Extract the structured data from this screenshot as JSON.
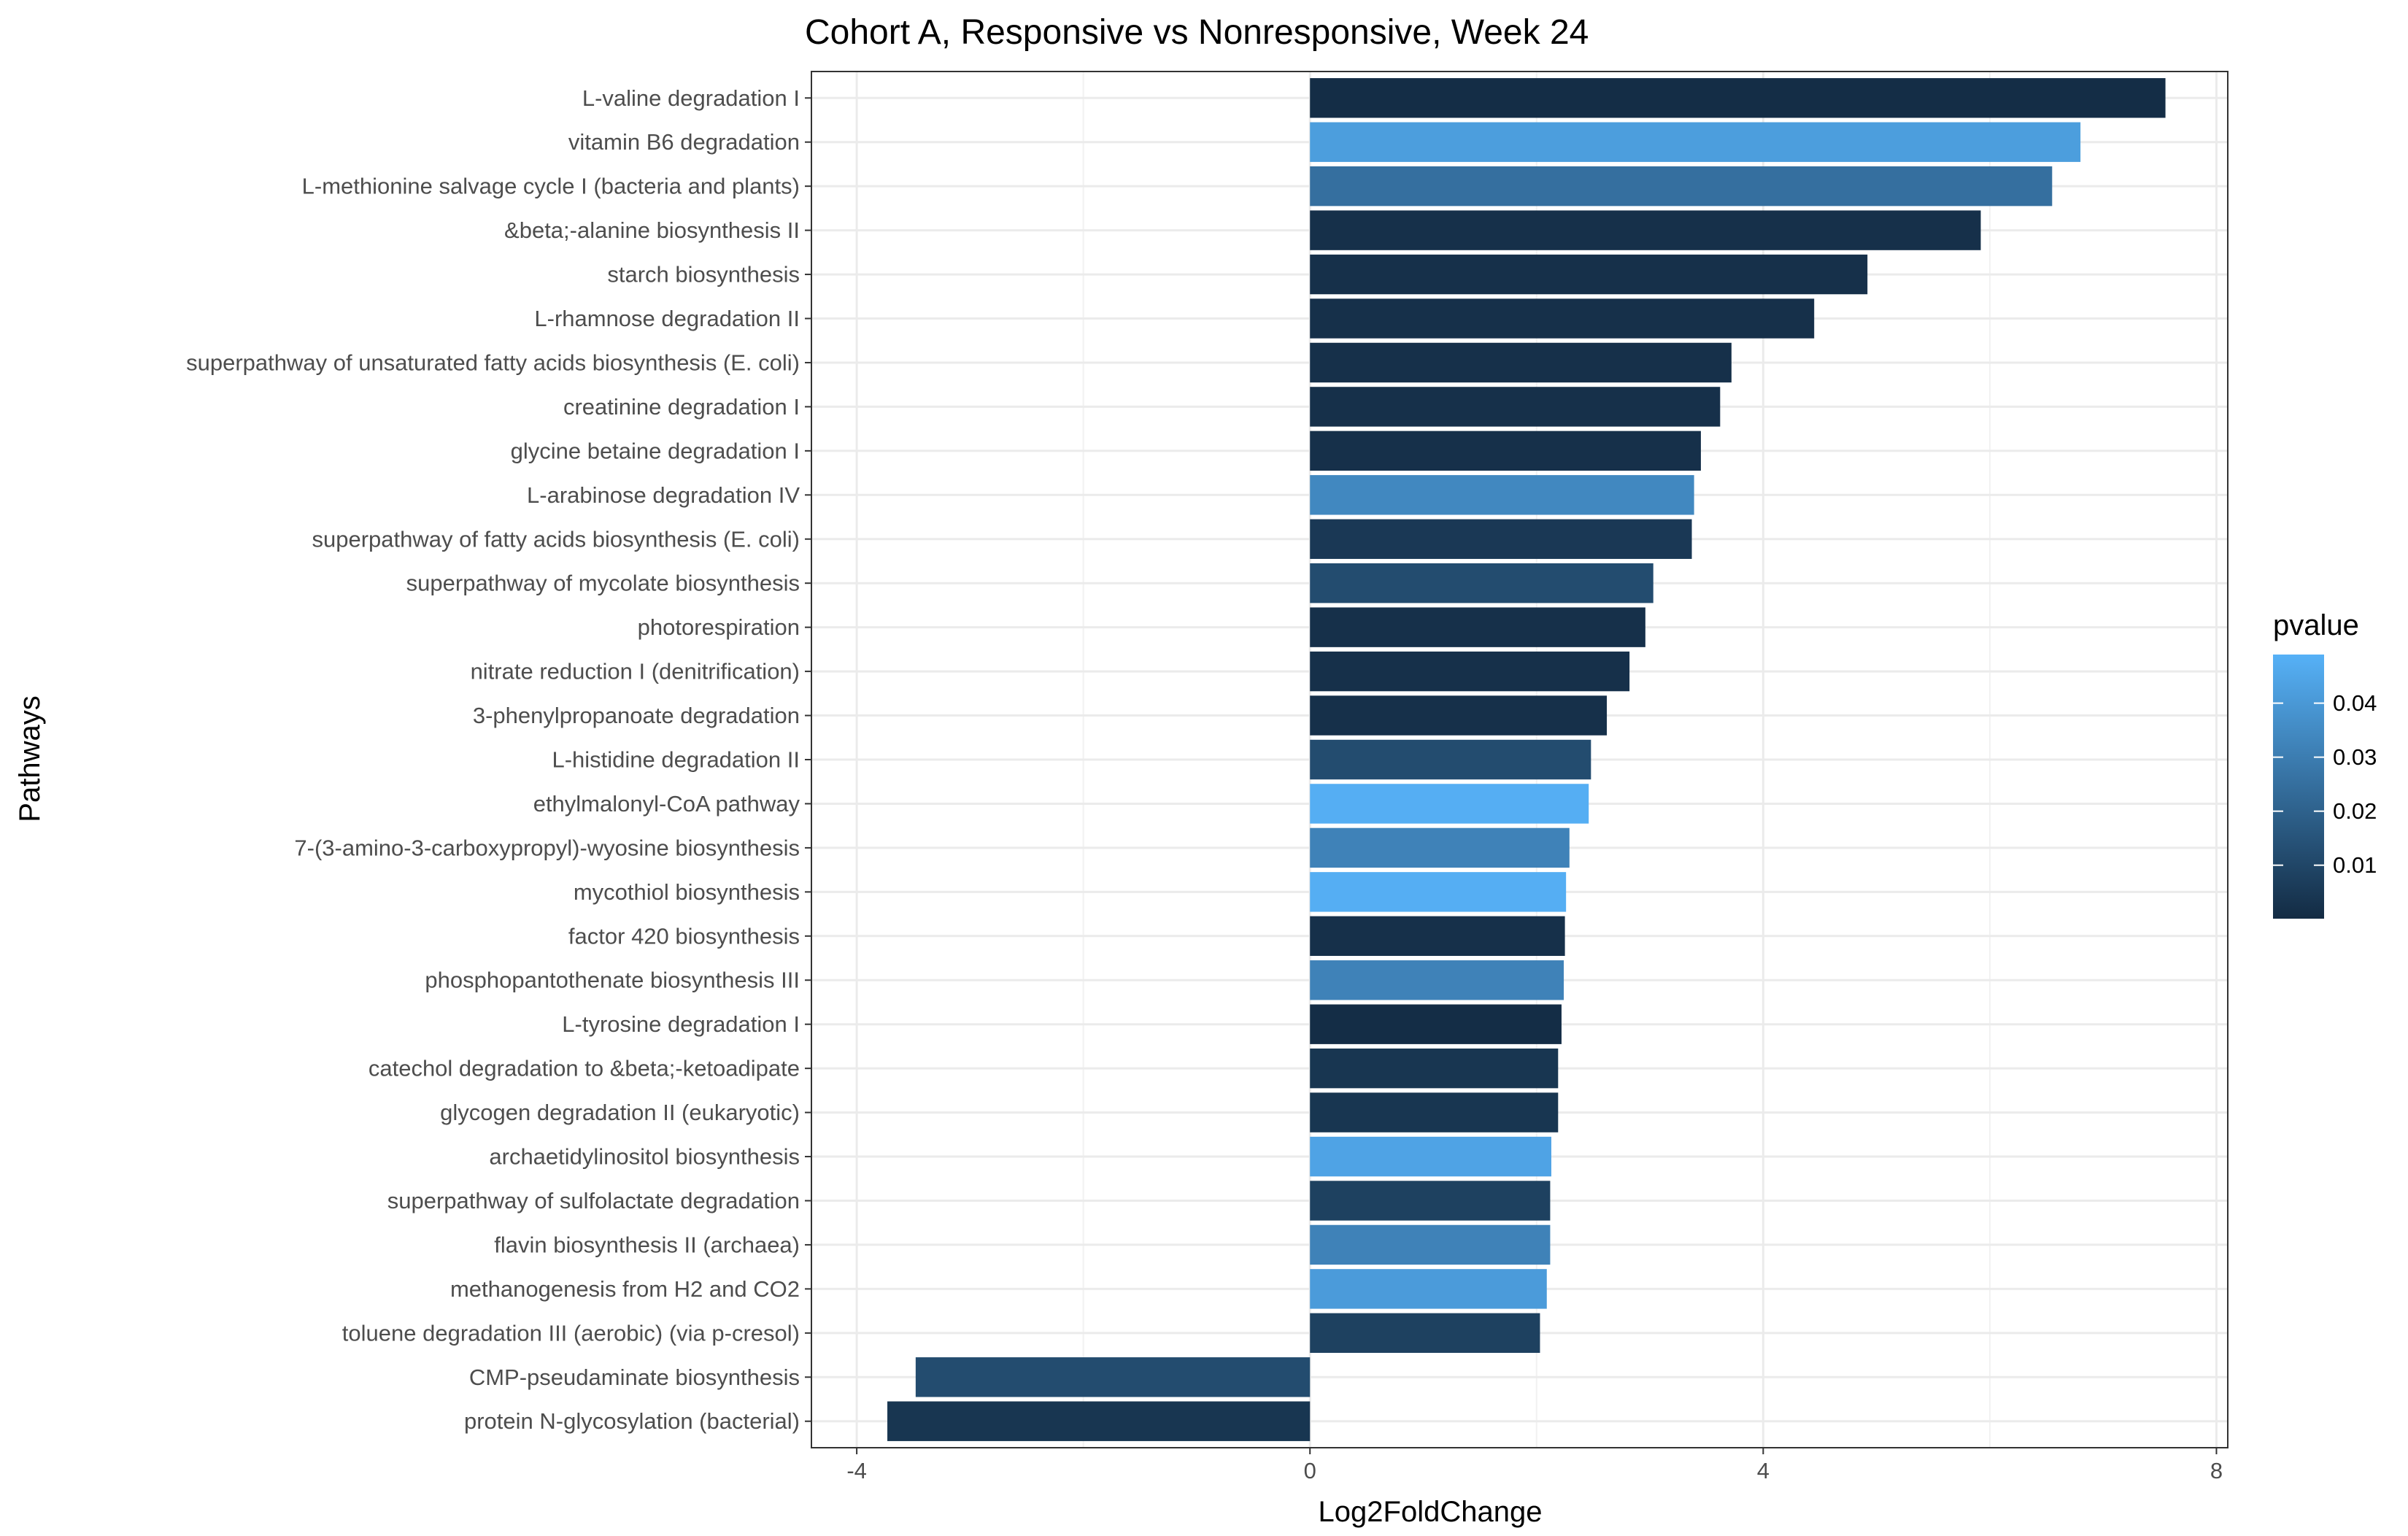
{
  "chart_data": {
    "type": "bar",
    "orientation": "horizontal",
    "title": "Cohort A, Responsive vs Nonresponsive, Week 24",
    "xlabel": "Log2FoldChange",
    "ylabel": "Pathways",
    "xlim": [
      -4.4,
      8.1
    ],
    "xticks": [
      -4,
      0,
      4,
      8
    ],
    "grid": true,
    "legend": {
      "title": "pvalue",
      "position": "right",
      "range": [
        0.0001,
        0.049
      ],
      "ticks": [
        0.01,
        0.02,
        0.03,
        0.04
      ],
      "low_color": "#132B43",
      "high_color": "#56B1F7"
    },
    "categories": [
      "L-valine degradation I",
      "vitamin B6 degradation",
      "L-methionine salvage cycle I (bacteria and plants)",
      "&beta;-alanine biosynthesis II",
      "starch biosynthesis",
      "L-rhamnose degradation II",
      "superpathway of unsaturated fatty acids biosynthesis (E. coli)",
      "creatinine degradation I",
      "glycine betaine degradation I",
      "L-arabinose degradation IV",
      "superpathway of fatty acids biosynthesis (E. coli)",
      "superpathway of mycolate biosynthesis",
      "photorespiration",
      "nitrate reduction I (denitrification)",
      "3-phenylpropanoate degradation",
      "L-histidine degradation II",
      "ethylmalonyl-CoA pathway",
      "7-(3-amino-3-carboxypropyl)-wyosine biosynthesis",
      "mycothiol biosynthesis",
      "factor 420 biosynthesis",
      "phosphopantothenate biosynthesis III",
      "L-tyrosine degradation I",
      "catechol degradation to &beta;-ketoadipate",
      "glycogen degradation II (eukaryotic)",
      "archaetidylinositol biosynthesis",
      "superpathway of sulfolactate degradation",
      "flavin biosynthesis II (archaea)",
      "methanogenesis from H2 and CO2",
      "toluene degradation III (aerobic) (via p-cresol)",
      "CMP-pseudaminate biosynthesis",
      "protein N-glycosylation (bacterial)"
    ],
    "series": [
      {
        "values": [
          7.55,
          6.8,
          6.55,
          5.92,
          4.92,
          4.45,
          3.72,
          3.62,
          3.45,
          3.39,
          3.37,
          3.03,
          2.96,
          2.82,
          2.62,
          2.48,
          2.46,
          2.29,
          2.26,
          2.25,
          2.24,
          2.22,
          2.19,
          2.19,
          2.13,
          2.12,
          2.12,
          2.09,
          2.03,
          -3.48,
          -3.73
        ],
        "pvalue": [
          0.001,
          0.042,
          0.025,
          0.002,
          0.002,
          0.002,
          0.002,
          0.002,
          0.002,
          0.034,
          0.005,
          0.012,
          0.002,
          0.002,
          0.002,
          0.012,
          0.048,
          0.032,
          0.048,
          0.002,
          0.032,
          0.001,
          0.004,
          0.004,
          0.044,
          0.008,
          0.032,
          0.041,
          0.008,
          0.012,
          0.004
        ]
      }
    ]
  }
}
